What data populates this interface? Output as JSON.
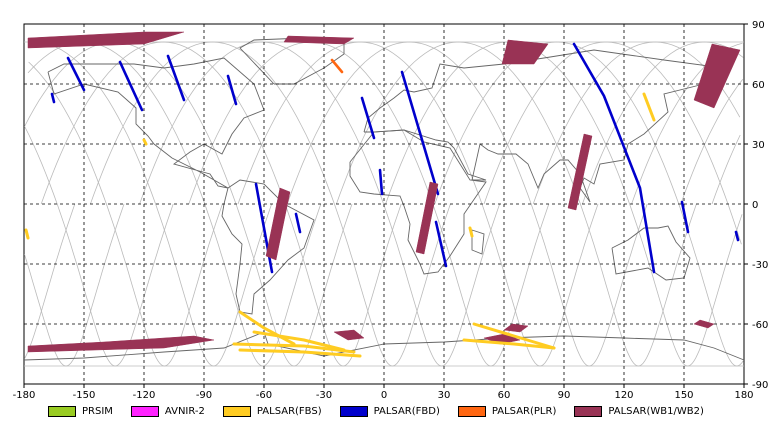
{
  "axes": {
    "x_ticks": [
      "-180",
      "-150",
      "-120",
      "-90",
      "-60",
      "-30",
      "0",
      "30",
      "60",
      "90",
      "120",
      "150",
      "180"
    ],
    "y_ticks": [
      "90",
      "60",
      "30",
      "0",
      "-30",
      "-60",
      "-90"
    ],
    "xlim": [
      -180,
      180
    ],
    "ylim": [
      -90,
      90
    ],
    "grid": true
  },
  "legend": {
    "placement": "bottom",
    "items": [
      {
        "label": "PRSIM",
        "color": "#99cc22"
      },
      {
        "label": "AVNIR-2",
        "color": "#ff22ff"
      },
      {
        "label": "PALSAR(FBS)",
        "color": "#ffcc22"
      },
      {
        "label": "PALSAR(FBD)",
        "color": "#0000cc"
      },
      {
        "label": "PALSAR(PLR)",
        "color": "#ff6611"
      },
      {
        "label": "PALSAR(WB1/WB2)",
        "color": "#993355"
      }
    ]
  },
  "chart_data": {
    "type": "map",
    "projection": "equirectangular",
    "xlim": [
      -180,
      180
    ],
    "ylim": [
      -90,
      90
    ],
    "orbit_color": "#bbbbbb",
    "coast_color": "#666666",
    "grid": true,
    "observations": [
      {
        "sensor": "PALSAR(FBD)",
        "color": "#0000cc",
        "type": "track",
        "path": [
          [
            -158,
            73
          ],
          [
            -150,
            57
          ]
        ]
      },
      {
        "sensor": "PALSAR(FBD)",
        "color": "#0000cc",
        "type": "track",
        "path": [
          [
            -132,
            71
          ],
          [
            -121,
            47
          ]
        ]
      },
      {
        "sensor": "PALSAR(FBD)",
        "color": "#0000cc",
        "type": "track",
        "path": [
          [
            -108,
            74
          ],
          [
            -100,
            52
          ]
        ]
      },
      {
        "sensor": "PALSAR(FBD)",
        "color": "#0000cc",
        "type": "track",
        "path": [
          [
            -78,
            64
          ],
          [
            -74,
            50
          ]
        ]
      },
      {
        "sensor": "PALSAR(FBD)",
        "color": "#0000cc",
        "type": "track",
        "path": [
          [
            -166,
            55
          ],
          [
            -165,
            51
          ]
        ]
      },
      {
        "sensor": "PALSAR(FBD)",
        "color": "#0000cc",
        "type": "track",
        "path": [
          [
            -64,
            10
          ],
          [
            -56,
            -34
          ]
        ]
      },
      {
        "sensor": "PALSAR(FBD)",
        "color": "#0000cc",
        "type": "track",
        "path": [
          [
            -44,
            -5
          ],
          [
            -42,
            -14
          ]
        ]
      },
      {
        "sensor": "PALSAR(FBD)",
        "color": "#0000cc",
        "type": "track",
        "path": [
          [
            -11,
            53
          ],
          [
            -5,
            33
          ]
        ]
      },
      {
        "sensor": "PALSAR(FBD)",
        "color": "#0000cc",
        "type": "track",
        "path": [
          [
            9,
            66
          ],
          [
            27,
            5
          ]
        ]
      },
      {
        "sensor": "PALSAR(FBD)",
        "color": "#0000cc",
        "type": "track",
        "path": [
          [
            26,
            -9
          ],
          [
            31,
            -31
          ]
        ]
      },
      {
        "sensor": "PALSAR(FBD)",
        "color": "#0000cc",
        "type": "track",
        "path": [
          [
            -2,
            17
          ],
          [
            -1,
            5
          ]
        ]
      },
      {
        "sensor": "PALSAR(FBD)",
        "color": "#0000cc",
        "type": "track",
        "path": [
          [
            95,
            80
          ],
          [
            110,
            54
          ],
          [
            128,
            8
          ],
          [
            135,
            -34
          ]
        ]
      },
      {
        "sensor": "PALSAR(FBD)",
        "color": "#0000cc",
        "type": "track",
        "path": [
          [
            149,
            1
          ],
          [
            152,
            -14
          ]
        ]
      },
      {
        "sensor": "PALSAR(FBD)",
        "color": "#0000cc",
        "type": "track",
        "path": [
          [
            176,
            -14
          ],
          [
            177,
            -18
          ]
        ]
      },
      {
        "sensor": "PALSAR(WB1/WB2)",
        "color": "#993355",
        "type": "swath",
        "poly": [
          [
            -178,
            83
          ],
          [
            -120,
            86
          ],
          [
            -100,
            86
          ],
          [
            -120,
            80
          ],
          [
            -178,
            78
          ]
        ]
      },
      {
        "sensor": "PALSAR(WB1/WB2)",
        "color": "#993355",
        "type": "swath",
        "poly": [
          [
            -48,
            84
          ],
          [
            -15,
            83
          ],
          [
            -20,
            80
          ],
          [
            -50,
            81
          ]
        ]
      },
      {
        "sensor": "PALSAR(WB1/WB2)",
        "color": "#993355",
        "type": "swath",
        "poly": [
          [
            62,
            82
          ],
          [
            82,
            80
          ],
          [
            75,
            70
          ],
          [
            59,
            70
          ]
        ]
      },
      {
        "sensor": "PALSAR(WB1/WB2)",
        "color": "#993355",
        "type": "swath",
        "poly": [
          [
            164,
            80
          ],
          [
            178,
            77
          ],
          [
            165,
            48
          ],
          [
            155,
            52
          ]
        ]
      },
      {
        "sensor": "PALSAR(WB1/WB2)",
        "color": "#993355",
        "type": "swath",
        "poly": [
          [
            -52,
            8
          ],
          [
            -47,
            6
          ],
          [
            -54,
            -28
          ],
          [
            -59,
            -26
          ]
        ]
      },
      {
        "sensor": "PALSAR(WB1/WB2)",
        "color": "#993355",
        "type": "swath",
        "poly": [
          [
            23,
            11
          ],
          [
            27,
            10
          ],
          [
            20,
            -25
          ],
          [
            16,
            -24
          ]
        ]
      },
      {
        "sensor": "PALSAR(WB1/WB2)",
        "color": "#993355",
        "type": "swath",
        "poly": [
          [
            100,
            35
          ],
          [
            104,
            34
          ],
          [
            96,
            -3
          ],
          [
            92,
            -2
          ]
        ]
      },
      {
        "sensor": "PALSAR(WB1/WB2)",
        "color": "#993355",
        "type": "swath",
        "poly": [
          [
            -178,
            -74
          ],
          [
            -110,
            -72
          ],
          [
            -85,
            -68
          ],
          [
            -95,
            -66
          ],
          [
            -140,
            -69
          ],
          [
            -178,
            -71
          ]
        ]
      },
      {
        "sensor": "PALSAR(WB1/WB2)",
        "color": "#993355",
        "type": "swath",
        "poly": [
          [
            -25,
            -64
          ],
          [
            -18,
            -68
          ],
          [
            -10,
            -67
          ],
          [
            -15,
            -63
          ]
        ]
      },
      {
        "sensor": "PALSAR(WB1/WB2)",
        "color": "#993355",
        "type": "swath",
        "poly": [
          [
            50,
            -67
          ],
          [
            58,
            -70
          ],
          [
            68,
            -68
          ],
          [
            60,
            -65
          ]
        ]
      },
      {
        "sensor": "PALSAR(WB1/WB2)",
        "color": "#993355",
        "type": "swath",
        "poly": [
          [
            60,
            -63
          ],
          [
            68,
            -64
          ],
          [
            72,
            -61
          ],
          [
            64,
            -60
          ]
        ]
      },
      {
        "sensor": "PALSAR(WB1/WB2)",
        "color": "#993355",
        "type": "swath",
        "poly": [
          [
            155,
            -60
          ],
          [
            162,
            -62
          ],
          [
            165,
            -60
          ],
          [
            158,
            -58
          ]
        ]
      },
      {
        "sensor": "PALSAR(FBS)",
        "color": "#ffcc22",
        "type": "track",
        "path": [
          [
            -72,
            -54
          ],
          [
            -60,
            -62
          ],
          [
            -45,
            -70
          ]
        ]
      },
      {
        "sensor": "PALSAR(FBS)",
        "color": "#ffcc22",
        "type": "track",
        "path": [
          [
            -75,
            -70
          ],
          [
            -40,
            -71
          ],
          [
            -15,
            -74
          ]
        ]
      },
      {
        "sensor": "PALSAR(FBS)",
        "color": "#ffcc22",
        "type": "track",
        "path": [
          [
            -72,
            -73
          ],
          [
            -40,
            -74
          ],
          [
            -12,
            -76
          ]
        ]
      },
      {
        "sensor": "PALSAR(FBS)",
        "color": "#ffcc22",
        "type": "track",
        "path": [
          [
            -65,
            -64
          ],
          [
            -40,
            -68
          ],
          [
            -20,
            -73
          ]
        ]
      },
      {
        "sensor": "PALSAR(FBS)",
        "color": "#ffcc22",
        "type": "track",
        "path": [
          [
            45,
            -60
          ],
          [
            65,
            -66
          ],
          [
            85,
            -72
          ]
        ]
      },
      {
        "sensor": "PALSAR(FBS)",
        "color": "#ffcc22",
        "type": "track",
        "path": [
          [
            40,
            -68
          ],
          [
            65,
            -70
          ],
          [
            85,
            -72
          ]
        ]
      },
      {
        "sensor": "PALSAR(FBS)",
        "color": "#ffcc22",
        "type": "track",
        "path": [
          [
            130,
            55
          ],
          [
            135,
            42
          ]
        ]
      },
      {
        "sensor": "PALSAR(FBS)",
        "color": "#ffcc22",
        "type": "track",
        "path": [
          [
            -120,
            32
          ],
          [
            -119,
            30
          ]
        ]
      },
      {
        "sensor": "PALSAR(FBS)",
        "color": "#ffcc22",
        "type": "track",
        "path": [
          [
            43,
            -12
          ],
          [
            44,
            -16
          ]
        ]
      },
      {
        "sensor": "PALSAR(FBS)",
        "color": "#ffcc22",
        "type": "track",
        "path": [
          [
            -179,
            -13
          ],
          [
            -178,
            -17
          ]
        ]
      },
      {
        "sensor": "PALSAR(PLR)",
        "color": "#ff6611",
        "type": "track",
        "path": [
          [
            -26,
            72
          ],
          [
            -21,
            66
          ]
        ]
      }
    ]
  }
}
